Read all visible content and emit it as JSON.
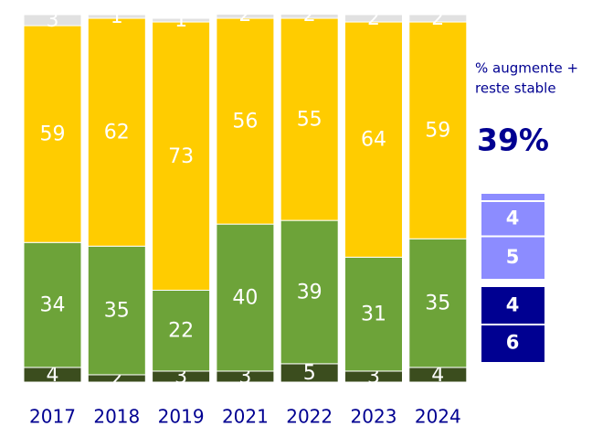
{
  "chart_data": {
    "type": "stacked_bar",
    "categories": [
      "2017",
      "2018",
      "2019",
      "2021",
      "2022",
      "2023",
      "2024"
    ],
    "series": [
      {
        "color": "#3b4d1e",
        "values": [
          4,
          2,
          3,
          3,
          5,
          3,
          4
        ]
      },
      {
        "color": "#6da339",
        "values": [
          34,
          35,
          22,
          40,
          39,
          31,
          35
        ]
      },
      {
        "color": "#ffcc00",
        "values": [
          59,
          62,
          73,
          56,
          55,
          64,
          59
        ]
      },
      {
        "color": "#e1e1e1",
        "values": [
          3,
          1,
          1,
          2,
          2,
          2,
          2
        ]
      }
    ],
    "ylim": [
      0,
      100
    ],
    "side_caption": [
      "% augmente +",
      "reste stable"
    ],
    "side_value": "39%",
    "side_boxes": [
      {
        "color": "#8c8cff",
        "lines": [
          "4",
          "5"
        ]
      },
      {
        "color": "#000091",
        "lines": [
          "4",
          "6"
        ]
      }
    ]
  }
}
